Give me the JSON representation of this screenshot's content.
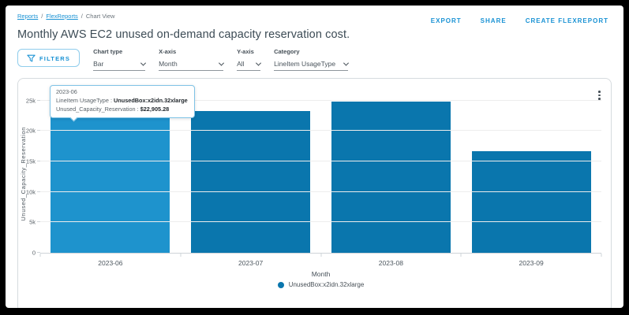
{
  "breadcrumb": {
    "separator": "/",
    "items": [
      {
        "label": "Reports"
      },
      {
        "label": "FlexReports"
      },
      {
        "label": "Chart View"
      }
    ]
  },
  "header": {
    "title": "Monthly AWS EC2 unused on-demand capacity reservation cost.",
    "actions": [
      {
        "label": "EXPORT"
      },
      {
        "label": "SHARE"
      },
      {
        "label": "CREATE FLEXREPORT"
      }
    ]
  },
  "filters": {
    "button_label": "FILTERS"
  },
  "controls": [
    {
      "label": "Chart type",
      "value": "Bar"
    },
    {
      "label": "X-axis",
      "value": "Month"
    },
    {
      "label": "Y-axis",
      "value": "All"
    },
    {
      "label": "Category",
      "value": "LineItem UsageType"
    }
  ],
  "tooltip": {
    "title": "2023-06",
    "rows": [
      {
        "label": "LineItem UsageType",
        "separator": " : ",
        "value": "UnusedBox:x2idn.32xlarge"
      },
      {
        "label": "Unused_Capacity_Reservation",
        "separator": " : ",
        "value": "$22,905.28"
      }
    ]
  },
  "chart_data": {
    "type": "bar",
    "title": "",
    "categories": [
      "2023-06",
      "2023-07",
      "2023-08",
      "2023-09"
    ],
    "series": [
      {
        "name": "UnusedBox:x2idn.32xlarge",
        "values": [
          22905.28,
          23250,
          24880,
          16750
        ]
      }
    ],
    "xlabel": "Month",
    "ylabel": "Unused_Capacity_Reservation",
    "ylim": [
      0,
      26000
    ],
    "yticks": [
      {
        "value": 0,
        "label": "0"
      },
      {
        "value": 5000,
        "label": "5k"
      },
      {
        "value": 10000,
        "label": "10k"
      },
      {
        "value": 15000,
        "label": "15k"
      },
      {
        "value": 20000,
        "label": "20k"
      },
      {
        "value": 25000,
        "label": "25k"
      }
    ],
    "grid": true,
    "highlighted_index": 0,
    "legend": {
      "position": "bottom",
      "items": [
        {
          "label": "UnusedBox:x2idn.32xlarge",
          "color": "#0a76ad"
        }
      ]
    }
  },
  "colors": {
    "accent": "#1992d4",
    "bar": "#0a76ad",
    "bar_highlight": "#1e93cd"
  }
}
